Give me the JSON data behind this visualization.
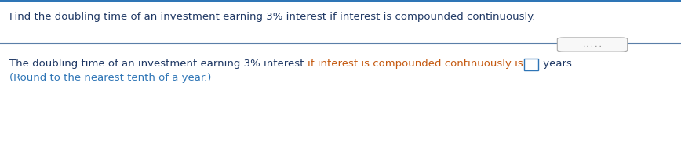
{
  "bg_color": "#ffffff",
  "top_border_color": "#2e75b6",
  "separator_color": "#5a7fa8",
  "question_text": "Find the doubling time of an investment earning 3% interest if interest is compounded continuously.",
  "question_color": "#1f3864",
  "part1_text": "The doubling time of an investment earning 3% interest ",
  "part1_color": "#1f3864",
  "part2_text": "if interest is compounded continuously is",
  "part2_color": "#c55a11",
  "part3_text": " years.",
  "part3_color": "#1f3864",
  "answer_line2": "(Round to the nearest tenth of a year.)",
  "answer_line2_color": "#2e75b6",
  "dots_text": ".....",
  "dots_color": "#7f7f7f",
  "font_size": 9.5
}
